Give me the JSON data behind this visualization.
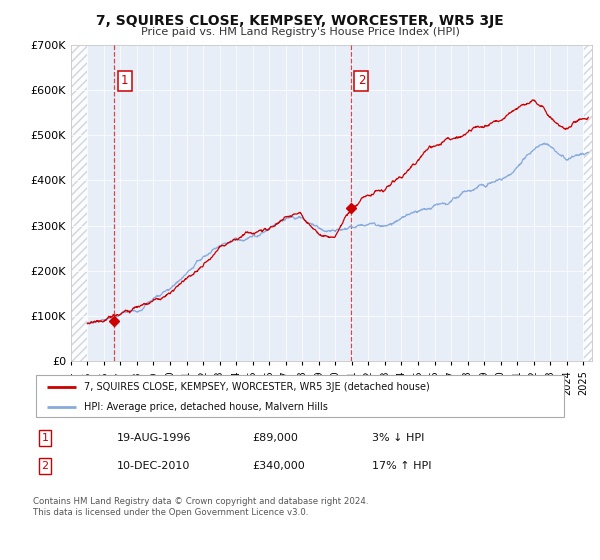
{
  "title": "7, SQUIRES CLOSE, KEMPSEY, WORCESTER, WR5 3JE",
  "subtitle": "Price paid vs. HM Land Registry's House Price Index (HPI)",
  "legend_line1": "7, SQUIRES CLOSE, KEMPSEY, WORCESTER, WR5 3JE (detached house)",
  "legend_line2": "HPI: Average price, detached house, Malvern Hills",
  "annotation1_label": "1",
  "annotation1_date": "19-AUG-1996",
  "annotation1_price": "£89,000",
  "annotation1_hpi": "3% ↓ HPI",
  "annotation2_label": "2",
  "annotation2_date": "10-DEC-2010",
  "annotation2_price": "£340,000",
  "annotation2_hpi": "17% ↑ HPI",
  "footnote1": "Contains HM Land Registry data © Crown copyright and database right 2024.",
  "footnote2": "This data is licensed under the Open Government Licence v3.0.",
  "sale1_x": 1996.63,
  "sale1_y": 89000,
  "sale2_x": 2010.95,
  "sale2_y": 340000,
  "property_color": "#cc0000",
  "hpi_color": "#88aadd",
  "vline_color": "#cc0000",
  "plot_bg_color": "#e8eef8",
  "hatch_color": "#c8cdd8",
  "background_color": "#ffffff",
  "ylim": [
    0,
    700000
  ],
  "xlim_left": 1994.0,
  "xlim_right": 2025.5,
  "hatch_end": 1995.0,
  "n_points": 1500
}
